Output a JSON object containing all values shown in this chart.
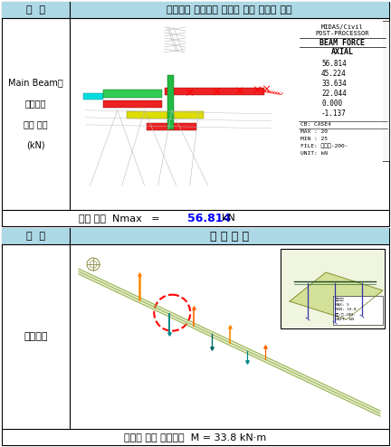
{
  "panel1_header_left": "구  분",
  "panel1_header_right": "해석결과 검토대상 부재의 최대 부재력 분포",
  "panel1_left_text": "Main Beam에\n\n작용하는\n\n최대 축력\n\n(kN)",
  "panel1_footer": "최대 축력  Nmax   =",
  "panel1_footer_value": "56.814",
  "panel1_footer_unit": "kN",
  "legend_title1": "MIDAS/Civil",
  "legend_title2": "POST-PROCESSOR",
  "legend_title3": "BEAM FORCE",
  "legend_title4": "AXIAL",
  "legend_values": [
    "56.814",
    "45.224",
    "33.634",
    "22.044",
    "0.000",
    "-1.137"
  ],
  "legend_colors": [
    "#FF0000",
    "#FFFF00",
    "#ADFF2F",
    "#00FF7F",
    "#00FFFF"
  ],
  "legend_extra": [
    "CB: CASE4",
    "MAX : 20",
    "MIN : 25",
    "FILE: 보타겟-200-",
    "UNIT: kN"
  ],
  "panel2_header_left": "구  분",
  "panel2_header_right": "해 석 모 델",
  "panel2_left_text": "휨모멘트",
  "panel2_footer": "지점부 추가 휨모멘트  M = 33.8 kN·m",
  "bg_color": "#FFFFFF",
  "header_bg_color": "#ADD8E6",
  "border_color": "#000000",
  "table_bg": "#FFFFFF",
  "content_bg": "#FFFFFF"
}
